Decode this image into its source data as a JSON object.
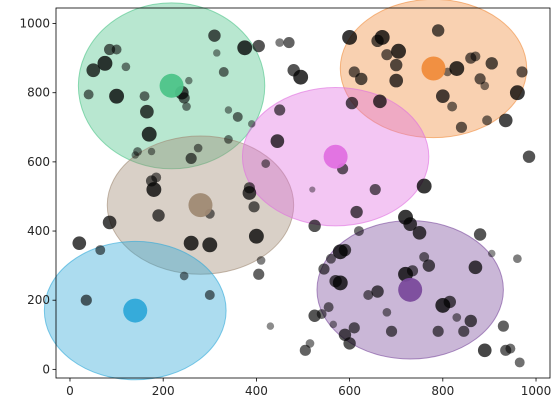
{
  "chart_data": {
    "type": "scatter",
    "title": "",
    "xlabel": "",
    "ylabel": "",
    "xlim": [
      -30,
      1030
    ],
    "ylim": [
      -25,
      1045
    ],
    "x_ticks": [
      0,
      200,
      400,
      600,
      800,
      1000
    ],
    "y_ticks": [
      0,
      200,
      400,
      600,
      800,
      1000
    ],
    "grid": false,
    "legend": "none",
    "clusters": [
      {
        "color": "#4dc489",
        "center": [
          218,
          820
        ],
        "rx": 200,
        "ry": 240
      },
      {
        "color": "#a08a74",
        "center": [
          280,
          475
        ],
        "rx": 200,
        "ry": 200
      },
      {
        "color": "#f08c3c",
        "center": [
          780,
          870
        ],
        "rx": 200,
        "ry": 200
      },
      {
        "color": "#e070e0",
        "center": [
          570,
          615
        ],
        "rx": 200,
        "ry": 200
      },
      {
        "color": "#2fa8d8",
        "center": [
          140,
          170
        ],
        "rx": 195,
        "ry": 200
      },
      {
        "color": "#7a4a9c",
        "center": [
          730,
          230
        ],
        "rx": 200,
        "ry": 200
      }
    ],
    "points": [
      [
        40,
        795,
        8
      ],
      [
        50,
        865,
        11
      ],
      [
        75,
        885,
        12
      ],
      [
        85,
        925,
        9
      ],
      [
        100,
        925,
        8
      ],
      [
        100,
        790,
        12
      ],
      [
        120,
        875,
        7
      ],
      [
        145,
        630,
        7
      ],
      [
        160,
        790,
        8
      ],
      [
        165,
        745,
        11
      ],
      [
        170,
        680,
        12
      ],
      [
        175,
        545,
        9
      ],
      [
        180,
        520,
        12
      ],
      [
        185,
        555,
        8
      ],
      [
        190,
        445,
        10
      ],
      [
        240,
        800,
        11
      ],
      [
        245,
        785,
        9
      ],
      [
        250,
        760,
        7
      ],
      [
        255,
        835,
        6
      ],
      [
        300,
        450,
        8
      ],
      [
        260,
        365,
        12
      ],
      [
        300,
        360,
        12
      ],
      [
        310,
        965,
        10
      ],
      [
        315,
        915,
        6
      ],
      [
        330,
        860,
        8
      ],
      [
        340,
        750,
        6
      ],
      [
        360,
        730,
        8
      ],
      [
        385,
        510,
        11
      ],
      [
        385,
        525,
        9
      ],
      [
        395,
        470,
        9
      ],
      [
        400,
        385,
        12
      ],
      [
        405,
        275,
        9
      ],
      [
        410,
        315,
        7
      ],
      [
        420,
        595,
        7
      ],
      [
        445,
        660,
        11
      ],
      [
        450,
        750,
        9
      ],
      [
        470,
        945,
        9
      ],
      [
        480,
        865,
        10
      ],
      [
        495,
        845,
        12
      ],
      [
        520,
        520,
        5
      ],
      [
        525,
        415,
        10
      ],
      [
        545,
        290,
        9
      ],
      [
        560,
        320,
        8
      ],
      [
        570,
        255,
        10
      ],
      [
        580,
        340,
        12
      ],
      [
        585,
        580,
        9
      ],
      [
        590,
        345,
        10
      ],
      [
        600,
        960,
        12
      ],
      [
        605,
        770,
        10
      ],
      [
        610,
        860,
        9
      ],
      [
        615,
        455,
        10
      ],
      [
        620,
        400,
        8
      ],
      [
        625,
        840,
        10
      ],
      [
        655,
        520,
        9
      ],
      [
        660,
        950,
        10
      ],
      [
        665,
        775,
        11
      ],
      [
        670,
        960,
        12
      ],
      [
        680,
        910,
        9
      ],
      [
        700,
        880,
        10
      ],
      [
        700,
        835,
        11
      ],
      [
        705,
        920,
        12
      ],
      [
        720,
        440,
        12
      ],
      [
        730,
        420,
        11
      ],
      [
        760,
        530,
        12
      ],
      [
        790,
        980,
        10
      ],
      [
        800,
        790,
        11
      ],
      [
        810,
        860,
        7
      ],
      [
        820,
        760,
        8
      ],
      [
        830,
        870,
        12
      ],
      [
        840,
        700,
        9
      ],
      [
        860,
        900,
        9
      ],
      [
        870,
        905,
        8
      ],
      [
        880,
        840,
        9
      ],
      [
        890,
        820,
        7
      ],
      [
        895,
        720,
        8
      ],
      [
        905,
        885,
        10
      ],
      [
        935,
        720,
        11
      ],
      [
        960,
        800,
        12
      ],
      [
        970,
        860,
        9
      ],
      [
        985,
        615,
        10
      ],
      [
        20,
        365,
        11
      ],
      [
        35,
        200,
        9
      ],
      [
        65,
        345,
        8
      ],
      [
        85,
        425,
        11
      ],
      [
        140,
        620,
        6
      ],
      [
        175,
        630,
        6
      ],
      [
        245,
        270,
        7
      ],
      [
        260,
        610,
        9
      ],
      [
        275,
        640,
        7
      ],
      [
        300,
        215,
        8
      ],
      [
        340,
        665,
        7
      ],
      [
        375,
        930,
        12
      ],
      [
        390,
        710,
        6
      ],
      [
        405,
        935,
        10
      ],
      [
        430,
        125,
        6
      ],
      [
        450,
        945,
        7
      ],
      [
        505,
        55,
        9
      ],
      [
        515,
        75,
        7
      ],
      [
        525,
        155,
        10
      ],
      [
        540,
        160,
        8
      ],
      [
        555,
        180,
        8
      ],
      [
        565,
        130,
        6
      ],
      [
        580,
        250,
        12
      ],
      [
        590,
        100,
        10
      ],
      [
        600,
        75,
        10
      ],
      [
        610,
        120,
        9
      ],
      [
        640,
        215,
        8
      ],
      [
        660,
        225,
        10
      ],
      [
        680,
        165,
        7
      ],
      [
        690,
        110,
        9
      ],
      [
        720,
        275,
        12
      ],
      [
        735,
        285,
        9
      ],
      [
        750,
        395,
        11
      ],
      [
        760,
        325,
        8
      ],
      [
        770,
        300,
        10
      ],
      [
        790,
        110,
        9
      ],
      [
        800,
        185,
        12
      ],
      [
        815,
        195,
        10
      ],
      [
        830,
        150,
        7
      ],
      [
        845,
        110,
        9
      ],
      [
        860,
        140,
        10
      ],
      [
        870,
        295,
        11
      ],
      [
        880,
        390,
        10
      ],
      [
        890,
        55,
        11
      ],
      [
        905,
        335,
        6
      ],
      [
        930,
        125,
        9
      ],
      [
        935,
        55,
        9
      ],
      [
        945,
        60,
        8
      ],
      [
        960,
        320,
        7
      ],
      [
        965,
        20,
        8
      ]
    ]
  }
}
